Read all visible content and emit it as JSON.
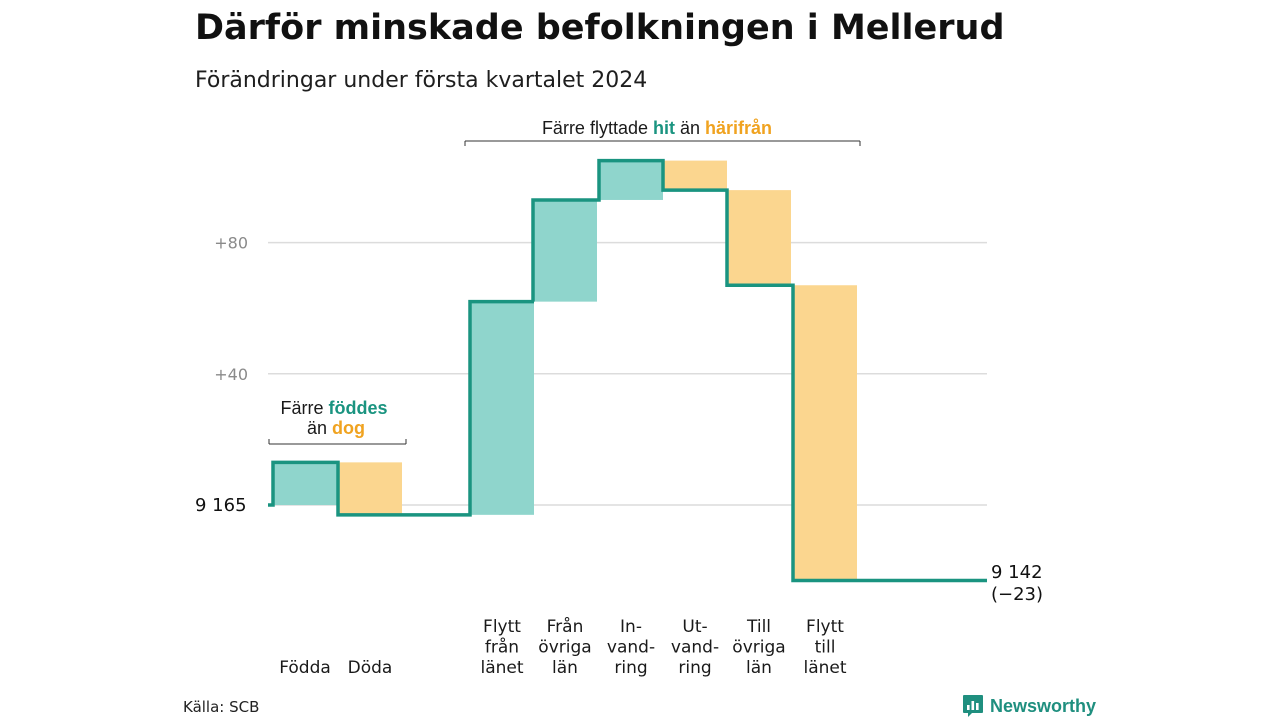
{
  "title": "Därför minskade befolkningen i Mellerud",
  "subtitle": "Förändringar under första kvartalet 2024",
  "source": "Källa: SCB",
  "brand": {
    "name": "Newsworthy",
    "icon": "newsworthy-chart-icon"
  },
  "colors": {
    "increase": "#8fd5cc",
    "decrease": "#fbd68f",
    "line": "#1a9480",
    "hit": "#1a9480",
    "harifran": "#f0a320",
    "grid": "#dcdcdc"
  },
  "annotations": {
    "birth": {
      "line1_prefix": "Färre ",
      "line1_bold": "föddes",
      "line2_prefix": "än ",
      "line2_bold": "dog"
    },
    "moves": {
      "prefix": "Färre flyttade ",
      "bold1": "hit",
      "mid": " än ",
      "bold2": "härifrån"
    }
  },
  "chart_data": {
    "type": "waterfall",
    "start_label": "9 165",
    "end_label": "9 142",
    "end_change_label": "(−23)",
    "start": 9165,
    "end": 9142,
    "y_ticks": [
      {
        "label": "+80",
        "value": 80
      },
      {
        "label": "+40",
        "value": 40
      },
      {
        "label": "",
        "value": 0
      }
    ],
    "ylim": [
      -24,
      108
    ],
    "grid": true,
    "steps": [
      {
        "label_lines": [
          "Födda"
        ],
        "change": 13,
        "direction": "increase"
      },
      {
        "label_lines": [
          "Döda"
        ],
        "change": -16,
        "direction": "decrease"
      },
      {
        "label_lines": [
          "Flytt",
          "från",
          "länet"
        ],
        "change": 65,
        "direction": "increase"
      },
      {
        "label_lines": [
          "Från",
          "övriga",
          "län"
        ],
        "change": 31,
        "direction": "increase"
      },
      {
        "label_lines": [
          "In-",
          "vand-",
          "ring"
        ],
        "change": 12,
        "direction": "increase"
      },
      {
        "label_lines": [
          "Ut-",
          "vand-",
          "ring"
        ],
        "change": -9,
        "direction": "decrease"
      },
      {
        "label_lines": [
          "Till",
          "övriga",
          "län"
        ],
        "change": -29,
        "direction": "decrease"
      },
      {
        "label_lines": [
          "Flytt",
          "till",
          "länet"
        ],
        "change": -90,
        "direction": "decrease"
      }
    ]
  }
}
